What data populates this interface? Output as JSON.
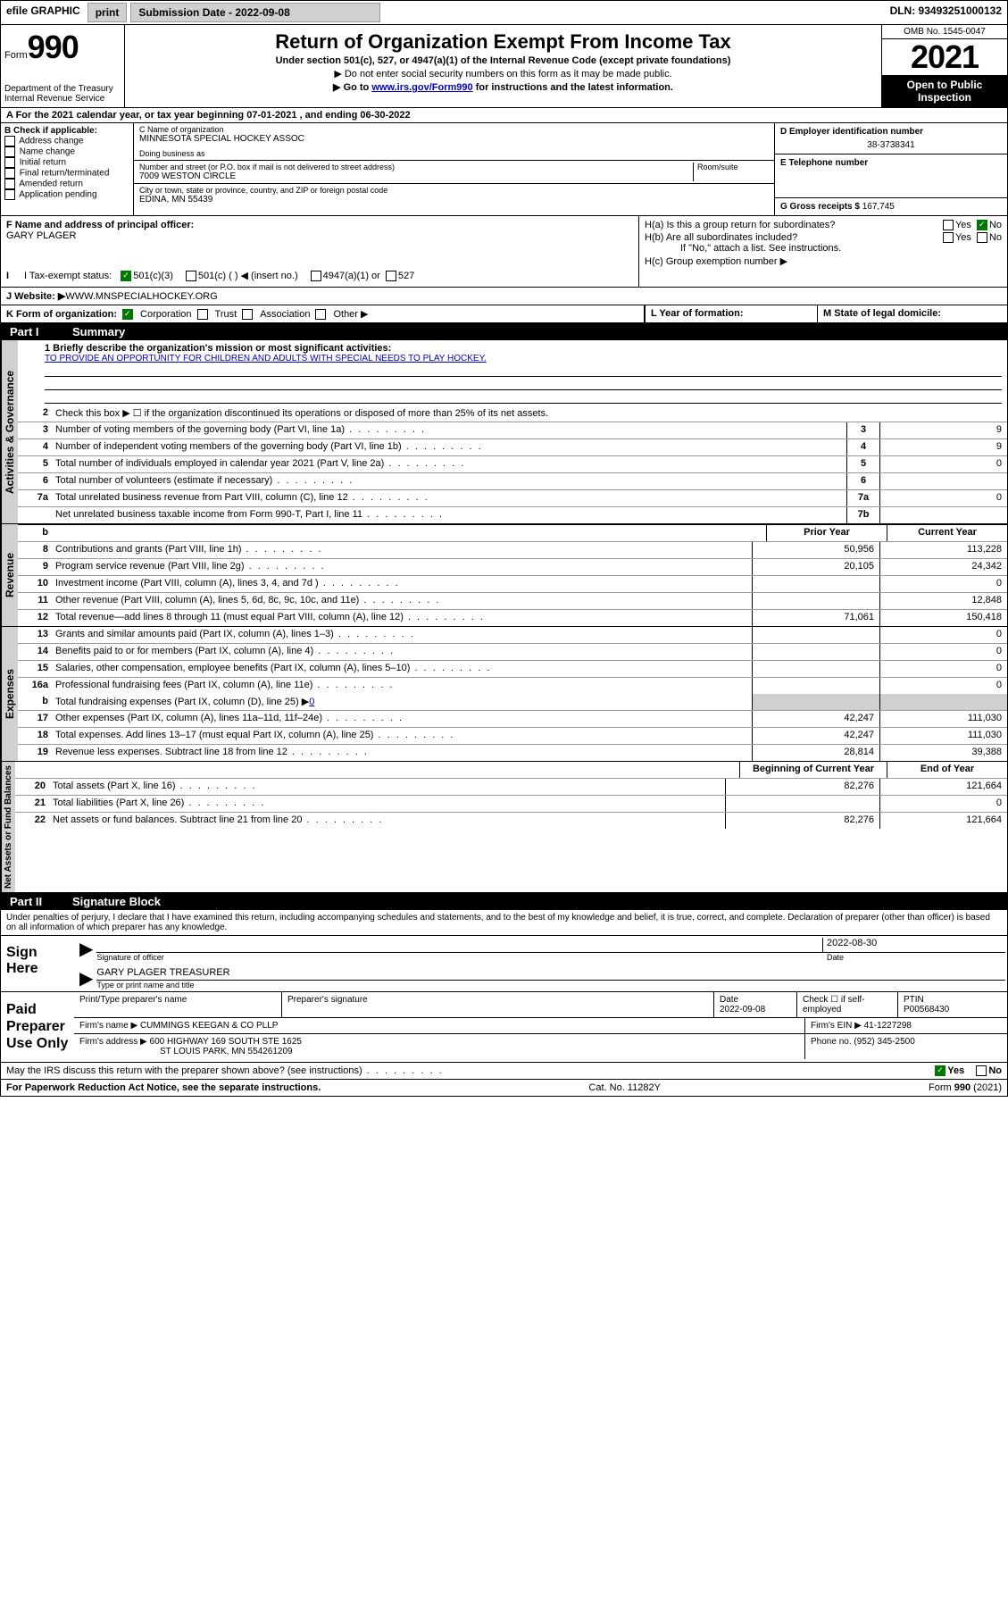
{
  "topbar": {
    "efile": "efile GRAPHIC",
    "print": "print",
    "submission_label": "Submission Date - 2022-09-08",
    "dln": "DLN: 93493251000132"
  },
  "header": {
    "form_word": "Form",
    "form_num": "990",
    "title": "Return of Organization Exempt From Income Tax",
    "subtitle1": "Under section 501(c), 527, or 4947(a)(1) of the Internal Revenue Code (except private foundations)",
    "subtitle2": "▶ Do not enter social security numbers on this form as it may be made public.",
    "subtitle3_prefix": "▶ Go to ",
    "subtitle3_link": "www.irs.gov/Form990",
    "subtitle3_suffix": " for instructions and the latest information.",
    "omb": "OMB No. 1545-0047",
    "year": "2021",
    "open_public": "Open to Public Inspection",
    "dept": "Department of the Treasury",
    "irs": "Internal Revenue Service"
  },
  "period": {
    "prefix": "A For the 2021 calendar year, or tax year beginning ",
    "begin": "07-01-2021",
    "mid": " , and ending ",
    "end": "06-30-2022"
  },
  "boxB": {
    "label": "B Check if applicable:",
    "opts": [
      "Address change",
      "Name change",
      "Initial return",
      "Final return/terminated",
      "Amended return",
      "Application pending"
    ]
  },
  "boxC": {
    "name_label": "C Name of organization",
    "name": "MINNESOTA SPECIAL HOCKEY ASSOC",
    "dba_label": "Doing business as",
    "street_label": "Number and street (or P.O. box if mail is not delivered to street address)",
    "room_label": "Room/suite",
    "street": "7009 WESTON CIRCLE",
    "city_label": "City or town, state or province, country, and ZIP or foreign postal code",
    "city": "EDINA, MN  55439"
  },
  "boxD": {
    "label": "D Employer identification number",
    "value": "38-3738341"
  },
  "boxE": {
    "label": "E Telephone number"
  },
  "boxG": {
    "label": "G Gross receipts $ ",
    "value": "167,745"
  },
  "boxF": {
    "label": "F Name and address of principal officer:",
    "name": "GARY PLAGER"
  },
  "boxH": {
    "a": "H(a)  Is this a group return for subordinates?",
    "b": "H(b)  Are all subordinates included?",
    "b_note": "If \"No,\" attach a list. See instructions.",
    "c": "H(c)  Group exemption number ▶",
    "yes": "Yes",
    "no": "No"
  },
  "boxI": {
    "label": "I   Tax-exempt status:",
    "opt1": "501(c)(3)",
    "opt2": "501(c) (  ) ◀ (insert no.)",
    "opt3": "4947(a)(1) or",
    "opt4": "527"
  },
  "boxJ": {
    "label": "J   Website: ▶ ",
    "value": "WWW.MNSPECIALHOCKEY.ORG"
  },
  "boxK": {
    "label": "K Form of organization:",
    "opts": [
      "Corporation",
      "Trust",
      "Association",
      "Other ▶"
    ]
  },
  "boxL": {
    "label": "L Year of formation:"
  },
  "boxM": {
    "label": "M State of legal domicile:"
  },
  "part1": {
    "label": "Part I",
    "title": "Summary"
  },
  "governance": {
    "label": "Activities & Governance",
    "line1_label": "1   Briefly describe the organization's mission or most significant activities:",
    "line1_value": "TO PROVIDE AN OPPORTUNITY FOR CHILDREN AND ADULTS WITH SPECIAL NEEDS TO PLAY HOCKEY.",
    "line2": "Check this box ▶ ☐  if the organization discontinued its operations or disposed of more than 25% of its net assets.",
    "rows": [
      {
        "num": "3",
        "text": "Number of voting members of the governing body (Part VI, line 1a)",
        "box": "3",
        "val": "9"
      },
      {
        "num": "4",
        "text": "Number of independent voting members of the governing body (Part VI, line 1b)",
        "box": "4",
        "val": "9"
      },
      {
        "num": "5",
        "text": "Total number of individuals employed in calendar year 2021 (Part V, line 2a)",
        "box": "5",
        "val": "0"
      },
      {
        "num": "6",
        "text": "Total number of volunteers (estimate if necessary)",
        "box": "6",
        "val": ""
      },
      {
        "num": "7a",
        "text": "Total unrelated business revenue from Part VIII, column (C), line 12",
        "box": "7a",
        "val": "0"
      },
      {
        "num": "",
        "text": "Net unrelated business taxable income from Form 990-T, Part I, line 11",
        "box": "7b",
        "val": ""
      }
    ]
  },
  "revenue": {
    "label": "Revenue",
    "prior_header": "Prior Year",
    "current_header": "Current Year",
    "rows": [
      {
        "num": "8",
        "text": "Contributions and grants (Part VIII, line 1h)",
        "prior": "50,956",
        "curr": "113,228"
      },
      {
        "num": "9",
        "text": "Program service revenue (Part VIII, line 2g)",
        "prior": "20,105",
        "curr": "24,342"
      },
      {
        "num": "10",
        "text": "Investment income (Part VIII, column (A), lines 3, 4, and 7d )",
        "prior": "",
        "curr": "0"
      },
      {
        "num": "11",
        "text": "Other revenue (Part VIII, column (A), lines 5, 6d, 8c, 9c, 10c, and 11e)",
        "prior": "",
        "curr": "12,848"
      },
      {
        "num": "12",
        "text": "Total revenue—add lines 8 through 11 (must equal Part VIII, column (A), line 12)",
        "prior": "71,061",
        "curr": "150,418"
      }
    ]
  },
  "expenses": {
    "label": "Expenses",
    "rows": [
      {
        "num": "13",
        "text": "Grants and similar amounts paid (Part IX, column (A), lines 1–3)",
        "prior": "",
        "curr": "0"
      },
      {
        "num": "14",
        "text": "Benefits paid to or for members (Part IX, column (A), line 4)",
        "prior": "",
        "curr": "0"
      },
      {
        "num": "15",
        "text": "Salaries, other compensation, employee benefits (Part IX, column (A), lines 5–10)",
        "prior": "",
        "curr": "0"
      },
      {
        "num": "16a",
        "text": "Professional fundraising fees (Part IX, column (A), line 11e)",
        "prior": "",
        "curr": "0"
      }
    ],
    "line_b": {
      "num": "b",
      "text": "Total fundraising expenses (Part IX, column (D), line 25) ▶",
      "val": "0"
    },
    "rows2": [
      {
        "num": "17",
        "text": "Other expenses (Part IX, column (A), lines 11a–11d, 11f–24e)",
        "prior": "42,247",
        "curr": "111,030"
      },
      {
        "num": "18",
        "text": "Total expenses. Add lines 13–17 (must equal Part IX, column (A), line 25)",
        "prior": "42,247",
        "curr": "111,030"
      },
      {
        "num": "19",
        "text": "Revenue less expenses. Subtract line 18 from line 12",
        "prior": "28,814",
        "curr": "39,388"
      }
    ]
  },
  "netassets": {
    "label": "Net Assets or Fund Balances",
    "begin_header": "Beginning of Current Year",
    "end_header": "End of Year",
    "rows": [
      {
        "num": "20",
        "text": "Total assets (Part X, line 16)",
        "prior": "82,276",
        "curr": "121,664"
      },
      {
        "num": "21",
        "text": "Total liabilities (Part X, line 26)",
        "prior": "",
        "curr": "0"
      },
      {
        "num": "22",
        "text": "Net assets or fund balances. Subtract line 21 from line 20",
        "prior": "82,276",
        "curr": "121,664"
      }
    ]
  },
  "part2": {
    "label": "Part II",
    "title": "Signature Block",
    "declaration": "Under penalties of perjury, I declare that I have examined this return, including accompanying schedules and statements, and to the best of my knowledge and belief, it is true, correct, and complete. Declaration of preparer (other than officer) is based on all information of which preparer has any knowledge."
  },
  "sign": {
    "label": "Sign Here",
    "sig_label": "Signature of officer",
    "date_label": "Date",
    "date": "2022-08-30",
    "name": "GARY PLAGER  TREASURER",
    "name_label": "Type or print name and title"
  },
  "paid": {
    "label": "Paid Preparer Use Only",
    "h1": "Print/Type preparer's name",
    "h2": "Preparer's signature",
    "h3": "Date",
    "h3v": "2022-09-08",
    "h4": "Check ☐ if self-employed",
    "h5": "PTIN",
    "h5v": "P00568430",
    "firm_name_label": "Firm's name    ▶",
    "firm_name": "CUMMINGS KEEGAN & CO PLLP",
    "firm_ein_label": "Firm's EIN ▶",
    "firm_ein": "41-1227298",
    "firm_addr_label": "Firm's address ▶",
    "firm_addr1": "600 HIGHWAY 169 SOUTH STE 1625",
    "firm_addr2": "ST LOUIS PARK, MN  554261209",
    "phone_label": "Phone no.",
    "phone": "(952) 345-2500"
  },
  "footer": {
    "discuss": "May the IRS discuss this return with the preparer shown above? (see instructions)",
    "yes": "Yes",
    "no": "No",
    "paperwork": "For Paperwork Reduction Act Notice, see the separate instructions.",
    "cat": "Cat. No. 11282Y",
    "form": "Form 990 (2021)"
  }
}
